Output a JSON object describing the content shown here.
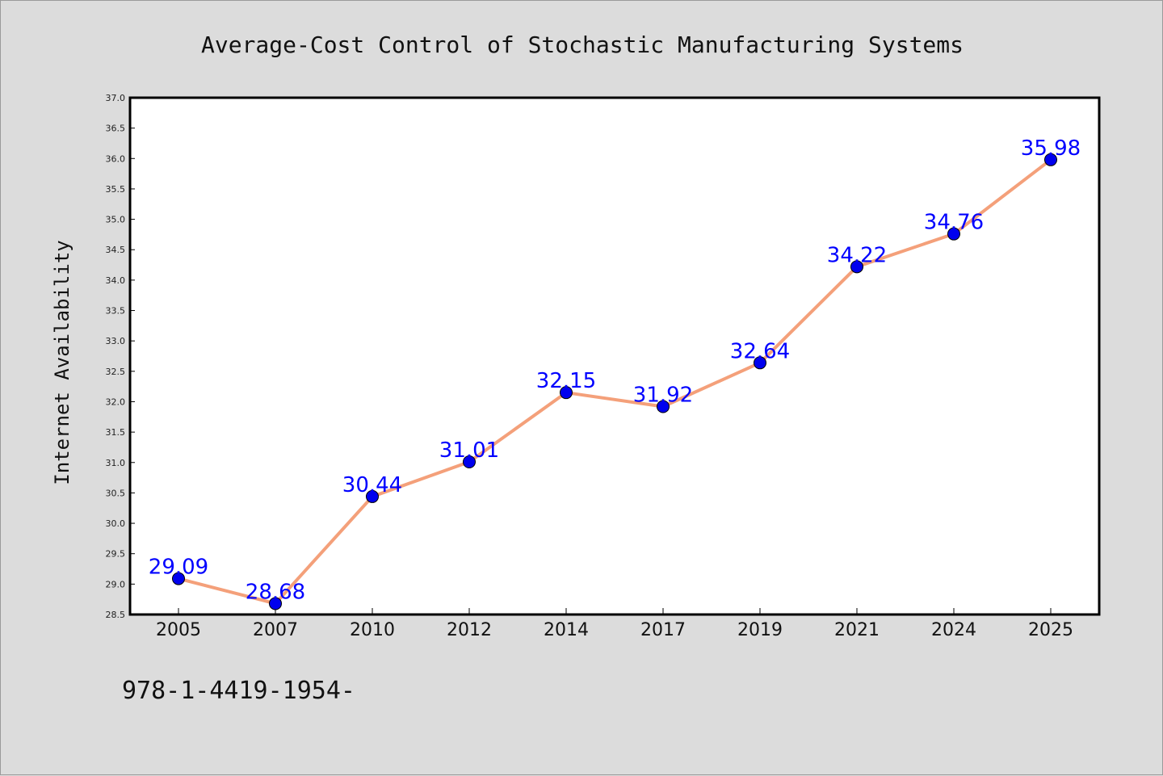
{
  "chart_data": {
    "type": "line",
    "title": "Average-Cost Control of Stochastic Manufacturing Systems",
    "xlabel": "",
    "ylabel": "Internet Availability",
    "categories": [
      "2005",
      "2007",
      "2010",
      "2012",
      "2014",
      "2017",
      "2019",
      "2021",
      "2024",
      "2025"
    ],
    "values": [
      29.09,
      28.68,
      30.44,
      31.01,
      32.15,
      31.92,
      32.64,
      34.22,
      34.76,
      35.98
    ],
    "data_labels": [
      "29.09",
      "28.68",
      "30.44",
      "31.01",
      "32.15",
      "31.92",
      "32.64",
      "34.22",
      "34.76",
      "35.98"
    ],
    "ylim": [
      28.5,
      37.0
    ],
    "yticks": [
      "28.5",
      "29.0",
      "29.5",
      "30.0",
      "30.5",
      "31.0",
      "31.5",
      "32.0",
      "32.5",
      "33.0",
      "33.5",
      "34.0",
      "34.5",
      "35.0",
      "35.5",
      "36.0",
      "36.5",
      "37.0"
    ],
    "grid": false,
    "colors": {
      "line": "#f4a07a",
      "marker": "#0000ee",
      "label": "#0000ff"
    }
  },
  "footer": {
    "isbn": "978-1-4419-1954-"
  }
}
